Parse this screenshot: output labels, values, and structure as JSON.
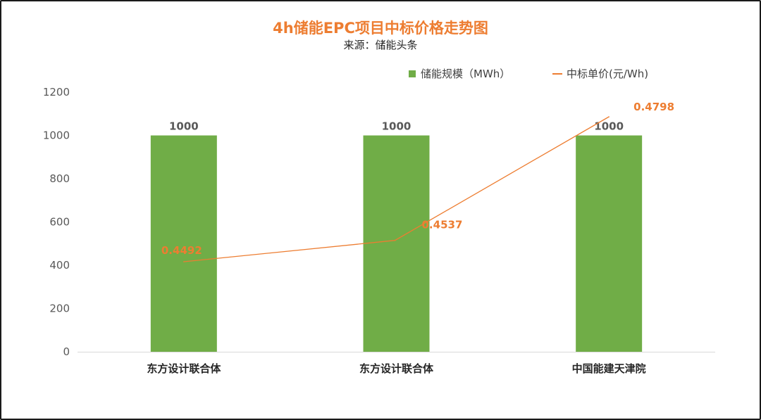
{
  "colors": {
    "bar": "#70ad47",
    "line": "#ed7d31",
    "title": "#ed7d31",
    "axis": "#d9d9d9"
  },
  "chart_data": {
    "type": "bar",
    "title": "4h储能EPC项目中标价格走势图",
    "subtitle": "来源：储能头条",
    "categories": [
      "东方设计联合体",
      "东方设计联合体",
      "中国能建天津院"
    ],
    "series": [
      {
        "name": "储能规模（MWh）",
        "type": "bar",
        "values": [
          1000,
          1000,
          1000
        ],
        "labels": [
          "1000",
          "1000",
          "1000"
        ]
      },
      {
        "name": "中标单价(元/Wh)",
        "type": "line",
        "values": [
          0.4492,
          0.4537,
          0.4798
        ],
        "labels": [
          "0.4492",
          "0.4537",
          "0.4798"
        ]
      }
    ],
    "ylim": [
      0,
      1200
    ],
    "yticks": [
      "0",
      "200",
      "400",
      "600",
      "800",
      "1000",
      "1200"
    ],
    "legend_position": "top-right",
    "grid": false
  }
}
